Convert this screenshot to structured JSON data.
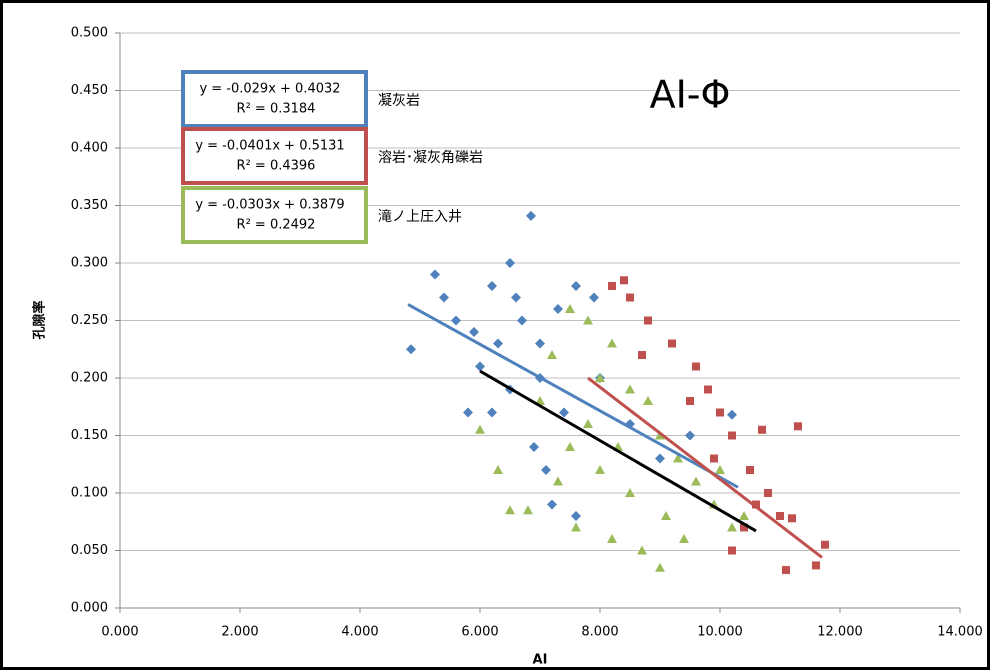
{
  "chart_data": {
    "type": "scatter",
    "title": "AI-Φ",
    "x_label": "AI",
    "y_label": "孔隙率",
    "xlim": [
      0,
      14
    ],
    "ylim": [
      0,
      0.5
    ],
    "xticks": [
      {
        "value": 0,
        "label": "0.000"
      },
      {
        "value": 2,
        "label": "2.000"
      },
      {
        "value": 4,
        "label": "4.000"
      },
      {
        "value": 6,
        "label": "6.000"
      },
      {
        "value": 8,
        "label": "8.000"
      },
      {
        "value": 10,
        "label": "10.000"
      },
      {
        "value": 12,
        "label": "12.000"
      },
      {
        "value": 14,
        "label": "14.000"
      }
    ],
    "yticks": [
      {
        "value": 0,
        "label": "0.000"
      },
      {
        "value": 0.05,
        "label": "0.050"
      },
      {
        "value": 0.1,
        "label": "0.100"
      },
      {
        "value": 0.15,
        "label": "0.150"
      },
      {
        "value": 0.2,
        "label": "0.200"
      },
      {
        "value": 0.25,
        "label": "0.250"
      },
      {
        "value": 0.3,
        "label": "0.300"
      },
      {
        "value": 0.35,
        "label": "0.350"
      },
      {
        "value": 0.4,
        "label": "0.400"
      },
      {
        "value": 0.45,
        "label": "0.450"
      },
      {
        "value": 0.5,
        "label": "0.500"
      }
    ],
    "grid": true,
    "series": [
      {
        "name": "凝灰岩",
        "color": "#4f81bd",
        "marker": "diamond",
        "equation": "y = -0.029x + 0.4032",
        "r2": "R² = 0.3184",
        "x": [
          4.85,
          5.25,
          5.4,
          5.6,
          5.9,
          6.2,
          6.5,
          6.6,
          6.85,
          6.7,
          7.0,
          7.3,
          7.6,
          7.9,
          6.0,
          6.2,
          6.5,
          6.9,
          7.1,
          7.2,
          7.6,
          8.0,
          8.5,
          9.0,
          9.5,
          10.2,
          6.3,
          7.0,
          7.4,
          5.8
        ],
        "values": [
          0.225,
          0.29,
          0.27,
          0.25,
          0.24,
          0.28,
          0.3,
          0.27,
          0.341,
          0.25,
          0.23,
          0.26,
          0.28,
          0.27,
          0.21,
          0.17,
          0.19,
          0.14,
          0.12,
          0.09,
          0.08,
          0.2,
          0.16,
          0.13,
          0.15,
          0.168,
          0.23,
          0.2,
          0.17,
          0.17
        ],
        "trendline": {
          "color": "#4f81bd",
          "x": [
            4.8,
            10.3
          ],
          "y": [
            0.264,
            0.105
          ]
        }
      },
      {
        "name": "溶岩･凝灰角礫岩",
        "color": "#c0504d",
        "marker": "square",
        "equation": "y = -0.0401x + 0.5131",
        "r2": "R² = 0.4396",
        "x": [
          8.2,
          8.4,
          8.5,
          8.8,
          9.2,
          9.6,
          9.8,
          10.0,
          10.2,
          10.5,
          10.8,
          11.0,
          11.3,
          11.1,
          11.6,
          11.75,
          10.4,
          10.2,
          9.5,
          9.9,
          10.6,
          11.2,
          10.7,
          8.7
        ],
        "values": [
          0.28,
          0.285,
          0.27,
          0.25,
          0.23,
          0.21,
          0.19,
          0.17,
          0.15,
          0.12,
          0.1,
          0.08,
          0.158,
          0.033,
          0.037,
          0.055,
          0.07,
          0.05,
          0.18,
          0.13,
          0.09,
          0.078,
          0.155,
          0.22
        ],
        "trendline": {
          "color": "#c0504d",
          "x": [
            7.8,
            11.7
          ],
          "y": [
            0.2,
            0.044
          ]
        }
      },
      {
        "name": "滝ノ上圧入井",
        "color": "#9bbb59",
        "marker": "triangle",
        "equation": "y = -0.0303x + 0.3879",
        "r2": "R² = 0.2492",
        "x": [
          6.0,
          6.3,
          6.5,
          6.8,
          7.0,
          7.2,
          7.5,
          7.8,
          8.0,
          8.2,
          8.5,
          8.8,
          9.0,
          9.3,
          9.6,
          9.9,
          10.2,
          10.4,
          9.0,
          8.7,
          8.2,
          7.6,
          7.5,
          8.0,
          8.5,
          9.1,
          7.8,
          8.3,
          9.4,
          10.0,
          7.3
        ],
        "values": [
          0.155,
          0.12,
          0.085,
          0.085,
          0.18,
          0.22,
          0.26,
          0.25,
          0.2,
          0.23,
          0.19,
          0.18,
          0.15,
          0.13,
          0.11,
          0.09,
          0.07,
          0.08,
          0.035,
          0.05,
          0.06,
          0.07,
          0.14,
          0.12,
          0.1,
          0.08,
          0.16,
          0.14,
          0.06,
          0.12,
          0.11
        ],
        "trendline": {
          "color": "#000000",
          "x": [
            6.0,
            10.6
          ],
          "y": [
            0.206,
            0.067
          ]
        }
      }
    ]
  }
}
